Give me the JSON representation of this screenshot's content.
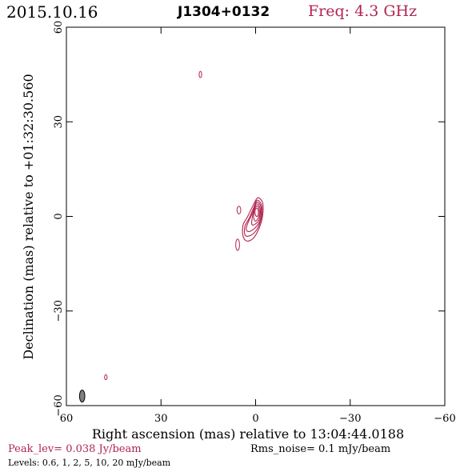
{
  "header": {
    "date": "2015.10.16",
    "source": "J1304+0132",
    "freq": "Freq: 4.3 GHz"
  },
  "footer": {
    "peak": "Peak_lev=  0.038 Jy/beam",
    "rms": "Rms_noise=   0.1 mJy/beam",
    "levels": "Levels: 0.6,    1,    2,    5,   10,   20  mJy/beam"
  },
  "colors": {
    "accent": "#b0254f",
    "beam": "#808080",
    "axis": "#000000"
  },
  "chart_data": {
    "type": "contour",
    "xlabel": "Right ascension (mas) relative to 13:04:44.0188",
    "ylabel": "Declination (mas) relative to +01:32:30.560",
    "xlim": [
      60,
      -60
    ],
    "ylim": [
      -60,
      60
    ],
    "x_ticks": [
      60,
      30,
      0,
      -30,
      -60
    ],
    "y_ticks": [
      -60,
      -30,
      0,
      30,
      60
    ],
    "x_tick_labels": [
      "60",
      "30",
      "0",
      "−30",
      "−60"
    ],
    "y_tick_labels": [
      "−60",
      "−30",
      "0",
      "30",
      "60"
    ],
    "contour_levels_mJy": [
      0.6,
      1,
      2,
      5,
      10,
      20
    ],
    "components": [
      {
        "x": 17.5,
        "y": 45,
        "rx": 0.4,
        "ry": 1.0,
        "angle": 0
      },
      {
        "x": 47.5,
        "y": -51,
        "rx": 0.4,
        "ry": 0.8,
        "angle": 0
      },
      {
        "x": 5.3,
        "y": 2,
        "rx": 0.6,
        "ry": 1.2,
        "angle": 0
      },
      {
        "x": 5.7,
        "y": -9,
        "rx": 0.6,
        "ry": 1.8,
        "angle": 0
      }
    ],
    "core_contours": [
      [
        [
          -1.5,
          5.5
        ],
        [
          -2.3,
          4.0
        ],
        [
          -2.2,
          0.0
        ],
        [
          -1.0,
          -4.0
        ],
        [
          0.8,
          -7.0
        ],
        [
          2.8,
          -7.8
        ],
        [
          4.0,
          -6.2
        ],
        [
          4.0,
          -2.8
        ],
        [
          2.5,
          0.0
        ],
        [
          0.8,
          3.5
        ],
        [
          -0.5,
          5.8
        ]
      ],
      [
        [
          -1.2,
          4.8
        ],
        [
          -2.0,
          3.0
        ],
        [
          -1.8,
          -0.5
        ],
        [
          -0.5,
          -4.0
        ],
        [
          1.5,
          -6.0
        ],
        [
          3.3,
          -6.0
        ],
        [
          3.4,
          -3.2
        ],
        [
          2.0,
          -0.5
        ],
        [
          0.5,
          3.0
        ],
        [
          -0.3,
          5.0
        ]
      ],
      [
        [
          -1.0,
          4.3
        ],
        [
          -1.8,
          2.5
        ],
        [
          -1.5,
          -1.0
        ],
        [
          0.0,
          -3.5
        ],
        [
          2.0,
          -4.8
        ],
        [
          3.0,
          -4.0
        ],
        [
          2.2,
          -1.5
        ],
        [
          0.8,
          1.5
        ],
        [
          -0.1,
          4.3
        ]
      ],
      [
        [
          -0.8,
          3.8
        ],
        [
          -1.5,
          2.2
        ],
        [
          -1.2,
          -0.8
        ],
        [
          0.2,
          -2.5
        ],
        [
          1.2,
          -2.5
        ],
        [
          1.0,
          0.0
        ],
        [
          0.3,
          2.5
        ],
        [
          -0.1,
          3.8
        ]
      ],
      [
        [
          -0.7,
          3.2
        ],
        [
          -1.2,
          1.8
        ],
        [
          -1.0,
          -0.2
        ],
        [
          0.0,
          -1.5
        ],
        [
          0.6,
          -0.5
        ],
        [
          0.5,
          1.5
        ],
        [
          0.0,
          3.0
        ]
      ],
      [
        [
          -0.6,
          2.5
        ],
        [
          -0.9,
          1.2
        ],
        [
          -0.6,
          0.0
        ],
        [
          0.0,
          0.3
        ],
        [
          0.2,
          1.5
        ],
        [
          -0.1,
          2.5
        ]
      ]
    ],
    "beam": {
      "x": 55,
      "y": -57,
      "major_mas": 3.8,
      "minor_mas": 1.7,
      "pa_deg": 0
    }
  }
}
